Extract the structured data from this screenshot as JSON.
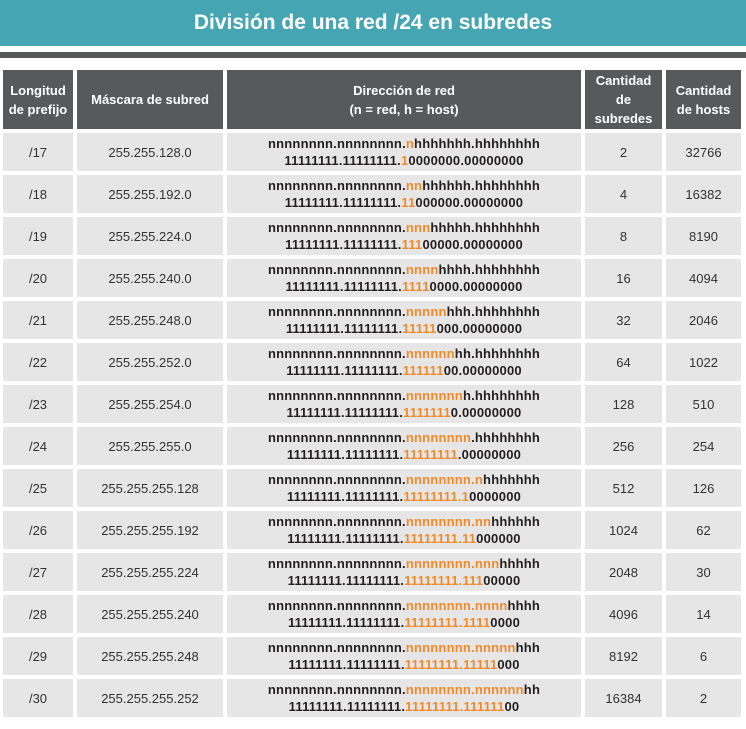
{
  "title": "División de una red /24 en subredes",
  "colors": {
    "title_bg": "#45a5b3",
    "header_bg": "#58595b",
    "cell_bg": "#e6e6e7",
    "highlight": "#ef8a2b"
  },
  "headers": {
    "prefix": "Longitud de prefijo",
    "mask": "Máscara de subred",
    "netaddr_line1": "Dirección de red",
    "netaddr_line2": "(n = red, h = host)",
    "subnets": "Cantidad de subredes",
    "hosts": "Cantidad de hosts"
  },
  "rows": [
    {
      "prefix": "/17",
      "mask": "255.255.128.0",
      "subnets": "2",
      "hosts": "32766"
    },
    {
      "prefix": "/18",
      "mask": "255.255.192.0",
      "subnets": "4",
      "hosts": "16382"
    },
    {
      "prefix": "/19",
      "mask": "255.255.224.0",
      "subnets": "8",
      "hosts": "8190"
    },
    {
      "prefix": "/20",
      "mask": "255.255.240.0",
      "subnets": "16",
      "hosts": "4094"
    },
    {
      "prefix": "/21",
      "mask": "255.255.248.0",
      "subnets": "32",
      "hosts": "2046"
    },
    {
      "prefix": "/22",
      "mask": "255.255.252.0",
      "subnets": "64",
      "hosts": "1022"
    },
    {
      "prefix": "/23",
      "mask": "255.255.254.0",
      "subnets": "128",
      "hosts": "510"
    },
    {
      "prefix": "/24",
      "mask": "255.255.255.0",
      "subnets": "256",
      "hosts": "254"
    },
    {
      "prefix": "/25",
      "mask": "255.255.255.128",
      "subnets": "512",
      "hosts": "126"
    },
    {
      "prefix": "/26",
      "mask": "255.255.255.192",
      "subnets": "1024",
      "hosts": "62"
    },
    {
      "prefix": "/27",
      "mask": "255.255.255.224",
      "subnets": "2048",
      "hosts": "30"
    },
    {
      "prefix": "/28",
      "mask": "255.255.255.240",
      "subnets": "4096",
      "hosts": "14"
    },
    {
      "prefix": "/29",
      "mask": "255.255.255.248",
      "subnets": "8192",
      "hosts": "6"
    },
    {
      "prefix": "/30",
      "mask": "255.255.255.252",
      "subnets": "16384",
      "hosts": "2"
    }
  ]
}
